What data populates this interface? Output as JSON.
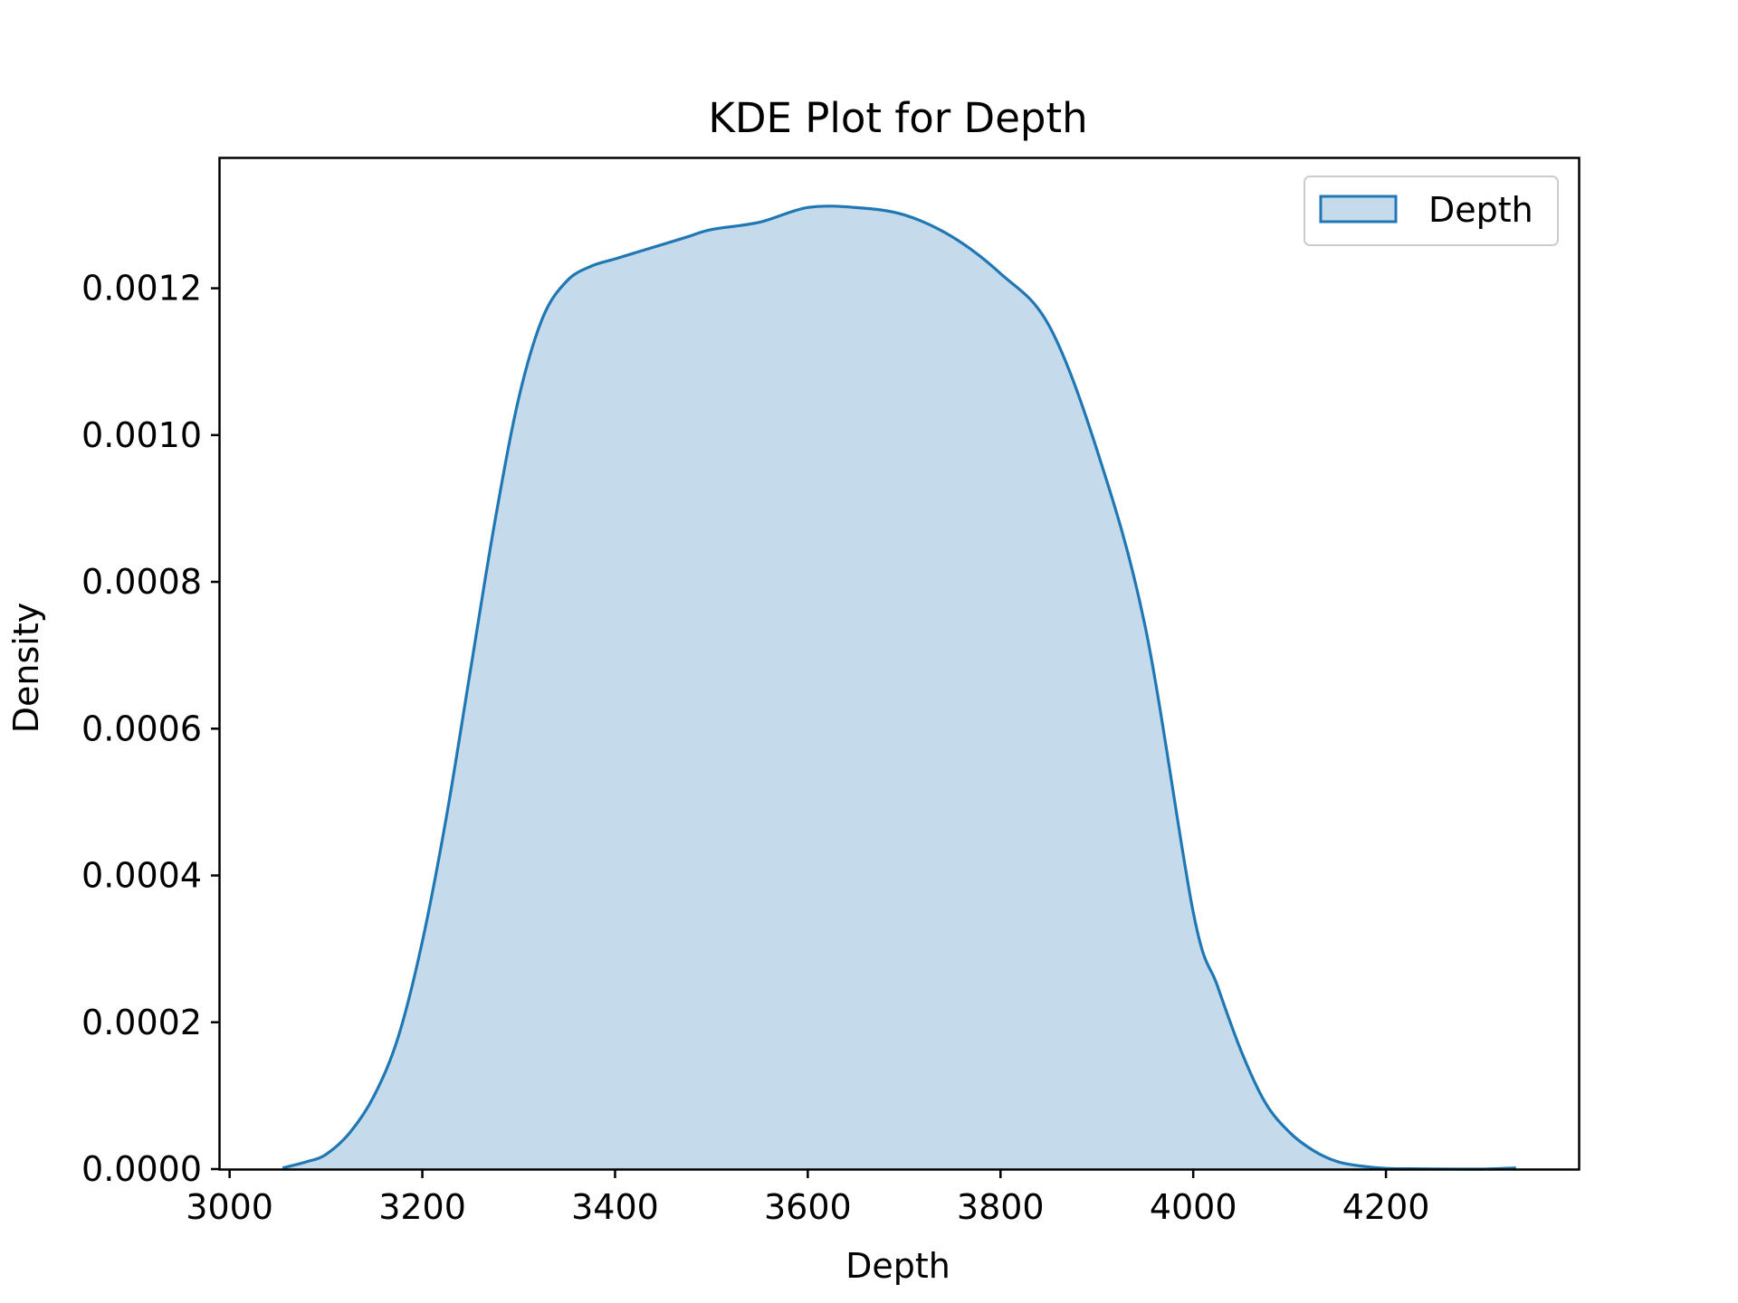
{
  "chart_data": {
    "type": "area",
    "title": "KDE Plot for Depth",
    "xlabel": "Depth",
    "ylabel": "Density",
    "xlim": [
      2990,
      4400
    ],
    "ylim": [
      0,
      0.001377
    ],
    "xticks": [
      3000,
      3200,
      3400,
      3600,
      3800,
      4000,
      4200
    ],
    "yticks": [
      0.0,
      0.0002,
      0.0004,
      0.0006,
      0.0008,
      0.001,
      0.0012
    ],
    "xtick_labels": [
      "3000",
      "3200",
      "3400",
      "3600",
      "3800",
      "4000",
      "4200"
    ],
    "ytick_labels": [
      "0.0000",
      "0.0002",
      "0.0004",
      "0.0006",
      "0.0008",
      "0.0010",
      "0.0012"
    ],
    "grid": false,
    "legend": {
      "position": "top-right",
      "entries": [
        "Depth"
      ]
    },
    "colors": {
      "line": "#1f77b4",
      "fill": "#c5dbec"
    },
    "series": [
      {
        "name": "Depth",
        "x": [
          3055,
          3080,
          3100,
          3125,
          3150,
          3175,
          3200,
          3225,
          3250,
          3275,
          3300,
          3325,
          3350,
          3375,
          3400,
          3425,
          3450,
          3475,
          3500,
          3550,
          3600,
          3650,
          3700,
          3750,
          3800,
          3850,
          3900,
          3950,
          4000,
          4025,
          4050,
          4075,
          4100,
          4125,
          4150,
          4175,
          4200,
          4225,
          4250,
          4275,
          4300,
          4335
        ],
        "y": [
          1.5e-06,
          1e-05,
          2e-05,
          5e-05,
          0.0001,
          0.00018,
          0.00031,
          0.00048,
          0.00068,
          0.00088,
          0.00105,
          0.00116,
          0.00121,
          0.00123,
          0.00124,
          0.00125,
          0.00126,
          0.00127,
          0.00128,
          0.00129,
          0.00131,
          0.00131,
          0.0013,
          0.00127,
          0.00122,
          0.00115,
          0.00098,
          0.00074,
          0.00035,
          0.00025,
          0.00016,
          9e-05,
          5e-05,
          2.5e-05,
          1e-05,
          4e-06,
          1e-06,
          5e-07,
          2e-07,
          1e-07,
          5e-08,
          1.5e-06
        ]
      }
    ]
  }
}
